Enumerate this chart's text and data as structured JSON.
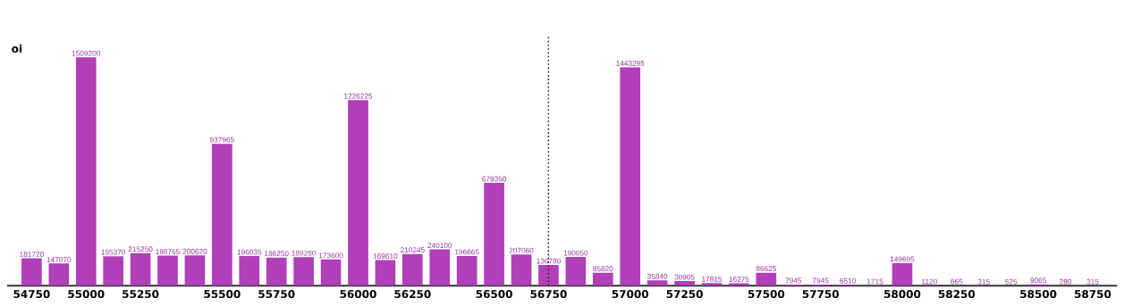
{
  "chart_data": {
    "type": "bar",
    "ylabel": "oi",
    "categories": [
      "54750",
      null,
      "55000",
      null,
      "55250",
      null,
      null,
      "55500",
      null,
      "55750",
      null,
      null,
      "56000",
      null,
      "56250",
      null,
      null,
      "56500",
      null,
      "56750",
      null,
      null,
      "57000",
      null,
      "57250",
      null,
      null,
      "57500",
      null,
      "57750",
      null,
      null,
      "58000",
      null,
      "58250",
      null,
      null,
      "58500",
      null,
      "58750"
    ],
    "values": [
      181720,
      147070,
      1509200,
      195370,
      215250,
      198765,
      200620,
      937965,
      196035,
      186250,
      189280,
      173600,
      1226225,
      169610,
      210245,
      240100,
      196665,
      679350,
      207060,
      136780,
      190050,
      85820,
      1443295,
      35840,
      30905,
      17815,
      16275,
      86625,
      7945,
      7945,
      6510,
      1715,
      149695,
      1120,
      665,
      315,
      525,
      9065,
      280,
      315
    ],
    "color": "#b03fb8",
    "data_labels": true,
    "ylim": [
      0,
      1650000
    ],
    "ref_lines": [
      {
        "axis": "x",
        "value": "56750",
        "line_style": "dotted",
        "color": "#111111"
      }
    ]
  }
}
